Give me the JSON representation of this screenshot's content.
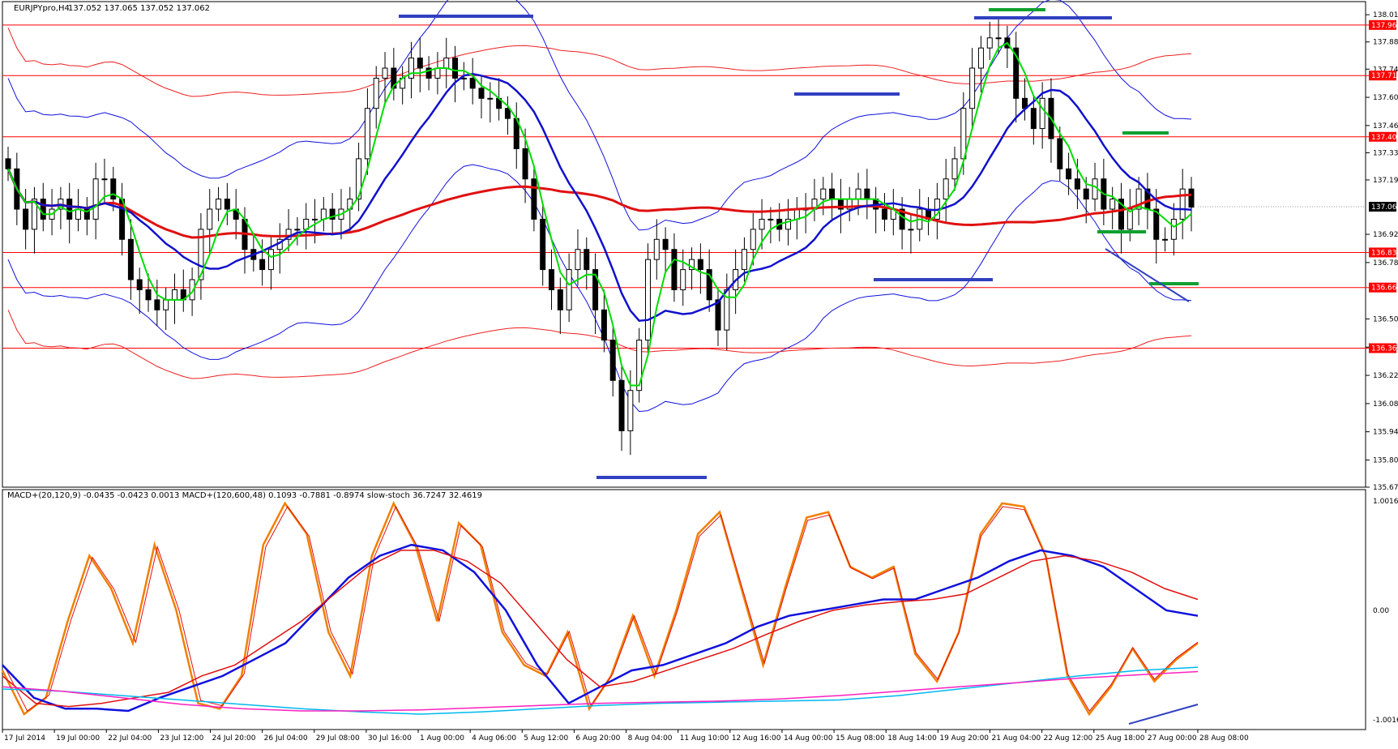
{
  "chart_data": [
    {
      "type": "candlestick",
      "title": "EURJPYpro,H4",
      "ohlc_header": "137.052 137.065 137.052 137.062",
      "y_ticks": [
        "138.015",
        "137.880",
        "137.745",
        "137.605",
        "137.465",
        "137.330",
        "137.195",
        "136.925",
        "136.785",
        "136.505",
        "136.365",
        "136.225",
        "136.085",
        "135.945",
        "135.805",
        "135.670"
      ],
      "ylim": [
        135.67,
        138.08
      ],
      "price_levels": [
        "137.964",
        "137.713",
        "137.409",
        "136.835",
        "136.661",
        "136.360"
      ],
      "current_price": "137.062",
      "x_labels": [
        "17 Jul 2014",
        "19 Jul 00:00",
        "22 Jul 04:00",
        "23 Jul 12:00",
        "24 Jul 20:00",
        "26 Jul 04:00",
        "29 Jul 08:00",
        "30 Jul 16:00",
        "1 Aug 00:00",
        "4 Aug 06:00",
        "5 Aug 12:00",
        "6 Aug 20:00",
        "8 Aug 04:00",
        "11 Aug 10:00",
        "12 Aug 16:00",
        "14 Aug 00:00",
        "15 Aug 08:00",
        "18 Aug 14:00",
        "19 Aug 20:00",
        "21 Aug 04:00",
        "22 Aug 12:00",
        "25 Aug 18:00",
        "27 Aug 00:00",
        "28 Aug 08:00"
      ],
      "closes": [
        137.25,
        137.05,
        136.95,
        137.1,
        137.0,
        137.05,
        137.1,
        137.0,
        137.05,
        137.0,
        137.2,
        137.2,
        137.1,
        136.9,
        136.7,
        136.65,
        136.6,
        136.55,
        136.6,
        136.65,
        136.6,
        136.7,
        136.95,
        137.05,
        137.1,
        137.05,
        137.0,
        136.85,
        136.8,
        136.75,
        136.85,
        136.9,
        136.95,
        136.95,
        137.0,
        137.0,
        137.05,
        137.0,
        137.05,
        137.1,
        137.3,
        137.55,
        137.7,
        137.75,
        137.65,
        137.7,
        137.8,
        137.75,
        137.7,
        137.75,
        137.8,
        137.7,
        137.7,
        137.65,
        137.6,
        137.6,
        137.55,
        137.5,
        137.35,
        137.2,
        137.0,
        136.75,
        136.65,
        136.55,
        136.75,
        136.85,
        136.75,
        136.55,
        136.4,
        136.2,
        135.95,
        136.15,
        136.4,
        136.8,
        136.9,
        136.85,
        136.65,
        136.75,
        136.8,
        136.75,
        136.6,
        136.45,
        136.65,
        136.75,
        136.85,
        136.95,
        137.0,
        137.0,
        136.95,
        137.0,
        137.05,
        137.05,
        137.1,
        137.15,
        137.1,
        137.05,
        137.1,
        137.15,
        137.1,
        137.05,
        137.0,
        137.05,
        136.95,
        136.95,
        137.05,
        137.0,
        137.1,
        137.2,
        137.3,
        137.55,
        137.75,
        137.85,
        137.9,
        137.9,
        137.85,
        137.6,
        137.55,
        137.45,
        137.6,
        137.4,
        137.25,
        137.2,
        137.15,
        137.1,
        137.2,
        137.05,
        137.1,
        136.95,
        137.05,
        137.15,
        137.05,
        136.9,
        136.9,
        137.0,
        137.15,
        137.06
      ],
      "series": [
        {
          "name": "ma_green",
          "color": "#00dd00"
        },
        {
          "name": "ma_blue",
          "color": "#1010cc"
        },
        {
          "name": "ma_red",
          "color": "#e01010"
        }
      ]
    },
    {
      "type": "line",
      "title": "MACD+(20,120,9) -0.0435 -0.0423 0.0013  MACD+(120,600,48) 0.1093 -0.7881 -0.8974  slow-stoch 36.7247 32.4619",
      "y_ticks": [
        "1.0016",
        "0.00",
        "-1.0016"
      ],
      "ylim": [
        -1.0016,
        1.0016
      ],
      "series": [
        {
          "name": "slow-stoch main",
          "color": "#f08000",
          "values": [
            -0.55,
            -0.95,
            -0.8,
            -0.1,
            0.5,
            0.2,
            -0.3,
            0.6,
            0.0,
            -0.85,
            -0.9,
            -0.6,
            0.6,
            0.98,
            0.7,
            -0.2,
            -0.6,
            0.5,
            0.98,
            0.6,
            -0.1,
            0.8,
            0.6,
            -0.2,
            -0.5,
            -0.6,
            -0.2,
            -0.9,
            -0.6,
            -0.05,
            -0.6,
            0.0,
            0.7,
            0.9,
            0.2,
            -0.5,
            0.2,
            0.85,
            0.9,
            0.4,
            0.3,
            0.4,
            -0.4,
            -0.65,
            -0.2,
            0.7,
            0.98,
            0.95,
            0.5,
            -0.6,
            -0.95,
            -0.7,
            -0.35,
            -0.65,
            -0.45,
            -0.3
          ]
        },
        {
          "name": "macd fast main",
          "color": "#1010dd",
          "values": [
            -0.5,
            -0.8,
            -0.9,
            -0.9,
            -0.92,
            -0.8,
            -0.7,
            -0.6,
            -0.45,
            -0.3,
            0.0,
            0.3,
            0.5,
            0.6,
            0.55,
            0.35,
            0.0,
            -0.5,
            -0.85,
            -0.7,
            -0.55,
            -0.5,
            -0.4,
            -0.3,
            -0.15,
            -0.05,
            0.0,
            0.05,
            0.1,
            0.1,
            0.2,
            0.3,
            0.45,
            0.55,
            0.5,
            0.4,
            0.2,
            0.0,
            -0.05
          ]
        },
        {
          "name": "macd fast signal",
          "color": "#e01010",
          "values": [
            -0.6,
            -0.85,
            -0.88,
            -0.85,
            -0.8,
            -0.75,
            -0.6,
            -0.5,
            -0.3,
            -0.1,
            0.15,
            0.4,
            0.55,
            0.55,
            0.45,
            0.25,
            -0.1,
            -0.45,
            -0.7,
            -0.65,
            -0.55,
            -0.45,
            -0.35,
            -0.22,
            -0.1,
            0.0,
            0.05,
            0.08,
            0.1,
            0.15,
            0.3,
            0.45,
            0.5,
            0.45,
            0.35,
            0.2,
            0.1
          ]
        },
        {
          "name": "macd slow main",
          "color": "#00b8f0",
          "values": [
            -0.72,
            -0.74,
            -0.78,
            -0.82,
            -0.86,
            -0.9,
            -0.93,
            -0.95,
            -0.93,
            -0.9,
            -0.87,
            -0.85,
            -0.84,
            -0.83,
            -0.82,
            -0.78,
            -0.72,
            -0.66,
            -0.6,
            -0.55,
            -0.52
          ]
        },
        {
          "name": "macd slow signal",
          "color": "#ff20c0",
          "values": [
            -0.7,
            -0.74,
            -0.8,
            -0.86,
            -0.9,
            -0.92,
            -0.92,
            -0.91,
            -0.89,
            -0.87,
            -0.85,
            -0.84,
            -0.83,
            -0.81,
            -0.78,
            -0.74,
            -0.7,
            -0.66,
            -0.62,
            -0.59,
            -0.56
          ]
        }
      ]
    }
  ]
}
